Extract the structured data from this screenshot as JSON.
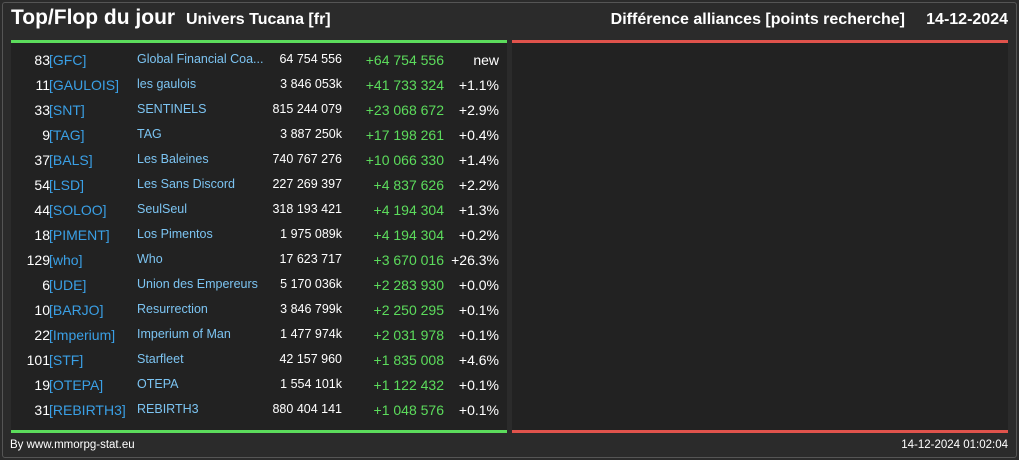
{
  "header": {
    "title": "Top/Flop du jour",
    "universe": "Univers Tucana [fr]",
    "metric": "Différence alliances [points recherche]",
    "date": "14-12-2024"
  },
  "colors": {
    "positive": "#5cdc5c",
    "negative": "#e0534c",
    "tag": "#3aa0e6",
    "name": "#7cc4f2"
  },
  "top": {
    "rows": [
      {
        "rank": "83",
        "tag": "[GFC]",
        "name": "Global Financial Coa...",
        "points": "64 754 556",
        "diff": "+64 754 556",
        "pct": "new"
      },
      {
        "rank": "11",
        "tag": "[GAULOIS]",
        "name": "les gaulois",
        "points": "3 846 053k",
        "diff": "+41 733 324",
        "pct": "+1.1%"
      },
      {
        "rank": "33",
        "tag": "[SNT]",
        "name": "SENTINELS",
        "points": "815 244 079",
        "diff": "+23 068 672",
        "pct": "+2.9%"
      },
      {
        "rank": "9",
        "tag": "[TAG]",
        "name": "TAG",
        "points": "3 887 250k",
        "diff": "+17 198 261",
        "pct": "+0.4%"
      },
      {
        "rank": "37",
        "tag": "[BALS]",
        "name": "Les Baleines",
        "points": "740 767 276",
        "diff": "+10 066 330",
        "pct": "+1.4%"
      },
      {
        "rank": "54",
        "tag": "[LSD]",
        "name": "Les Sans Discord",
        "points": "227 269 397",
        "diff": "+4 837 626",
        "pct": "+2.2%"
      },
      {
        "rank": "44",
        "tag": "[SOLOO]",
        "name": "SeulSeul",
        "points": "318 193 421",
        "diff": "+4 194 304",
        "pct": "+1.3%"
      },
      {
        "rank": "18",
        "tag": "[PIMENT]",
        "name": "Los Pimentos",
        "points": "1 975 089k",
        "diff": "+4 194 304",
        "pct": "+0.2%"
      },
      {
        "rank": "129",
        "tag": "[who]",
        "name": "Who",
        "points": "17 623 717",
        "diff": "+3 670 016",
        "pct": "+26.3%"
      },
      {
        "rank": "6",
        "tag": "[UDE]",
        "name": "Union des Empereurs",
        "points": "5 170 036k",
        "diff": "+2 283 930",
        "pct": "+0.0%"
      },
      {
        "rank": "10",
        "tag": "[BARJO]",
        "name": "Resurrection",
        "points": "3 846 799k",
        "diff": "+2 250 295",
        "pct": "+0.1%"
      },
      {
        "rank": "22",
        "tag": "[Imperium]",
        "name": "Imperium of Man",
        "points": "1 477 974k",
        "diff": "+2 031 978",
        "pct": "+0.1%"
      },
      {
        "rank": "101",
        "tag": "[STF]",
        "name": "Starfleet",
        "points": "42 157 960",
        "diff": "+1 835 008",
        "pct": "+4.6%"
      },
      {
        "rank": "19",
        "tag": "[OTEPA]",
        "name": "OTEPA",
        "points": "1 554 101k",
        "diff": "+1 122 432",
        "pct": "+0.1%"
      },
      {
        "rank": "31",
        "tag": "[REBIRTH3]",
        "name": "REBIRTH3",
        "points": "880 404 141",
        "diff": "+1 048 576",
        "pct": "+0.1%"
      }
    ]
  },
  "footer": {
    "credit": "By www.mmorpg-stat.eu",
    "timestamp": "14-12-2024 01:02:04"
  }
}
